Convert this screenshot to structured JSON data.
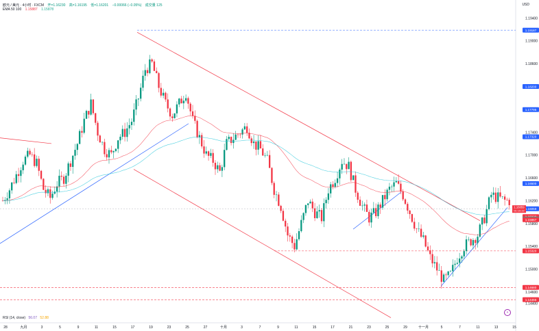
{
  "header": {
    "symbol": "欧元 / 美元 · 4小时 · FXCM",
    "open": "开=1.16230",
    "high": "高=1.16195",
    "low": "低=1.16201",
    "change": "−0.00066 (−0.05%)",
    "volume": "成交量 125",
    "ema_label": "EMA 50 100",
    "ema50": "1.15887",
    "ema100": "1.15878"
  },
  "currency": "USD",
  "rsi": {
    "label": "RSI (14, close)",
    "value1": "56.07",
    "value2": "52.88"
  },
  "price_axis": {
    "min": 1.143,
    "max": 1.195,
    "ticks": [
      "1.19400",
      "1.19000",
      "1.18600",
      "1.18200",
      "1.17800",
      "1.17400",
      "1.17000",
      "1.16600",
      "1.16200",
      "1.15800",
      "1.15400",
      "1.15000",
      "1.14600",
      "1.14400"
    ],
    "tick_values": [
      1.194,
      1.19,
      1.186,
      1.182,
      1.178,
      1.174,
      1.17,
      1.166,
      1.162,
      1.158,
      1.154,
      1.15,
      1.146,
      1.144
    ]
  },
  "price_labels": [
    {
      "text": "1.19187",
      "value": 1.19187,
      "color": "#2962ff"
    },
    {
      "text": "1.18200",
      "value": 1.182,
      "color": "#2962ff"
    },
    {
      "text": "1.17795",
      "value": 1.17795,
      "color": "#2962ff"
    },
    {
      "text": "1.17320",
      "value": 1.1732,
      "color": "#2962ff"
    },
    {
      "text": "1.16500",
      "value": 1.165,
      "color": "#2962ff"
    },
    {
      "text": "1.15920",
      "value": 1.1592,
      "color": "#f23645"
    },
    {
      "text": "1.16059",
      "value": 1.16059,
      "color": "#2962ff"
    },
    {
      "text": "1.15877",
      "value": 1.15877,
      "color": "#22ab94"
    },
    {
      "text": "1.15867",
      "value": 1.15867,
      "color": "#f23645"
    },
    {
      "text": "1.15320",
      "value": 1.1532,
      "color": "#f23645"
    },
    {
      "text": "1.14680",
      "value": 1.1468,
      "color": "#f23645"
    },
    {
      "text": "1.14466",
      "value": 1.14466,
      "color": "#f23645"
    }
  ],
  "countdown": "01:19:22",
  "x_labels": [
    "28",
    "九月",
    "3",
    "5",
    "9",
    "11",
    "15",
    "17",
    "19",
    "23",
    "25",
    "27",
    "十月",
    "3",
    "7",
    "9",
    "11",
    "15",
    "17",
    "21",
    "23",
    "25",
    "29",
    "十一月",
    "5",
    "7",
    "11",
    "13",
    "15"
  ],
  "chart_data": {
    "type": "candlestick",
    "symbol": "EURUSD 4H",
    "x_labels": [
      "28",
      "九月",
      "3",
      "5",
      "9",
      "11",
      "15",
      "17",
      "19",
      "23",
      "25",
      "27",
      "十月",
      "3",
      "7",
      "9",
      "11",
      "15",
      "17",
      "21",
      "23",
      "25",
      "29",
      "十一月",
      "5",
      "7",
      "11",
      "13",
      "15"
    ],
    "close_path": [
      1.162,
      1.164,
      1.1665,
      1.169,
      1.17,
      1.1685,
      1.164,
      1.1625,
      1.165,
      1.166,
      1.169,
      1.172,
      1.176,
      1.179,
      1.174,
      1.171,
      1.17,
      1.173,
      1.174,
      1.176,
      1.18,
      1.185,
      1.186,
      1.182,
      1.179,
      1.177,
      1.179,
      1.181,
      1.176,
      1.173,
      1.17,
      1.169,
      1.167,
      1.172,
      1.173,
      1.174,
      1.175,
      1.172,
      1.171,
      1.169,
      1.164,
      1.161,
      1.156,
      1.154,
      1.158,
      1.162,
      1.16,
      1.159,
      1.164,
      1.166,
      1.169,
      1.168,
      1.164,
      1.161,
      1.159,
      1.16,
      1.162,
      1.164,
      1.165,
      1.163,
      1.16,
      1.157,
      1.155,
      1.152,
      1.15,
      1.148,
      1.149,
      1.152,
      1.154,
      1.155,
      1.156,
      1.159,
      1.163,
      1.1625,
      1.162
    ],
    "horizontal_levels": [
      1.19187,
      1.1532,
      1.1468,
      1.14466
    ],
    "channel": "descending",
    "indicators": [
      "EMA 50",
      "EMA 100",
      "RSI 14"
    ]
  }
}
